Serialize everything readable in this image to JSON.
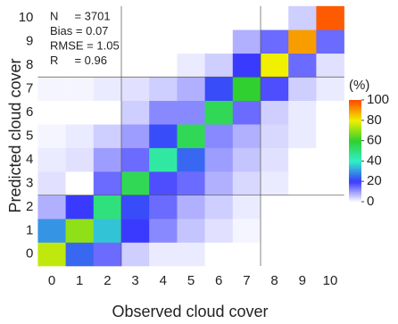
{
  "chart_data": {
    "type": "heatmap",
    "xlabel": "Observed cloud cover",
    "ylabel": "Predicted cloud cover",
    "x": [
      0,
      1,
      2,
      3,
      4,
      5,
      6,
      7,
      8,
      9,
      10
    ],
    "y": [
      0,
      1,
      2,
      3,
      4,
      5,
      6,
      7,
      8,
      9,
      10
    ],
    "z": [
      [
        75,
        25,
        15,
        5,
        2,
        2,
        0,
        0,
        0,
        0,
        0
      ],
      [
        30,
        70,
        35,
        20,
        12,
        6,
        3,
        1,
        0,
        0,
        0
      ],
      [
        8,
        20,
        50,
        22,
        15,
        8,
        5,
        2,
        0,
        0,
        0
      ],
      [
        3,
        0,
        15,
        55,
        18,
        15,
        8,
        4,
        2,
        0,
        0
      ],
      [
        2,
        3,
        10,
        15,
        45,
        25,
        10,
        6,
        3,
        0,
        0
      ],
      [
        1,
        2,
        5,
        10,
        22,
        55,
        12,
        8,
        4,
        2,
        0
      ],
      [
        0,
        0,
        0,
        5,
        12,
        12,
        55,
        15,
        5,
        2,
        0
      ],
      [
        1,
        1,
        2,
        3,
        5,
        8,
        22,
        60,
        18,
        5,
        2
      ],
      [
        0,
        0,
        0,
        0,
        0,
        2,
        5,
        20,
        80,
        15,
        3
      ],
      [
        0,
        0,
        0,
        0,
        0,
        0,
        0,
        8,
        15,
        90,
        15
      ],
      [
        0,
        0,
        0,
        0,
        0,
        0,
        0,
        0,
        0,
        5,
        98
      ]
    ],
    "annotations": [
      "N     = 3701",
      "Bias = 0.07",
      "RMSE = 1.05",
      "R     = 0.96"
    ],
    "colorbar": {
      "label": "(%)",
      "zlim": [
        0,
        100
      ],
      "ticks": [
        0,
        20,
        40,
        60,
        80,
        100
      ],
      "colorscale": [
        "#ffffff",
        "#3a3aff",
        "#30f0c8",
        "#30d030",
        "#f0f000",
        "#ff4a00"
      ]
    }
  }
}
